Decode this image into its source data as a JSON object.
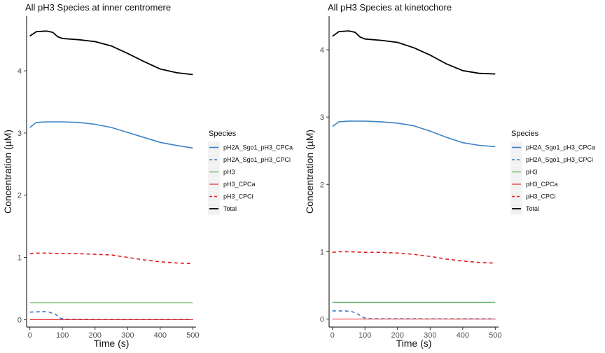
{
  "colors": {
    "pH2A_Sgo1_pH3_CPCa": "#3a82c4",
    "pH2A_Sgo1_pH3_CPCi": "#3a78c9",
    "pH3": "#33a02c",
    "pH3_CPCa": "#e31a1c",
    "pH3_CPCi": "#e31a1c",
    "Total": "#000000",
    "legend_bg": "#f2f2f2"
  },
  "chart_data": [
    {
      "type": "line",
      "title": "All pH3 Species at inner centromere",
      "xlabel": "Time (s)",
      "ylabel": "Concentration (µM)",
      "xlim": [
        -10,
        510
      ],
      "ylim": [
        -0.12,
        4.88
      ],
      "xticks": [
        "0",
        "100",
        "200",
        "300",
        "400",
        "500"
      ],
      "yticks": [
        "0",
        "1",
        "2",
        "3",
        "4"
      ],
      "grid": false,
      "legend": {
        "title": "Species",
        "placement": "right",
        "entries": [
          "pH2A_Sgo1_pH3_CPCa",
          "pH2A_Sgo1_pH3_CPCi",
          "pH3",
          "pH3_CPCa",
          "pH3_CPCi",
          "Total"
        ]
      },
      "series": [
        {
          "name": "pH2A_Sgo1_pH3_CPCa",
          "x": [
            0,
            20,
            50,
            100,
            150,
            200,
            250,
            300,
            350,
            400,
            450,
            500
          ],
          "y": [
            3.09,
            3.17,
            3.18,
            3.18,
            3.17,
            3.14,
            3.09,
            3.01,
            2.93,
            2.85,
            2.8,
            2.76
          ]
        },
        {
          "name": "pH2A_Sgo1_pH3_CPCi",
          "x": [
            0,
            40,
            60,
            80,
            95,
            110,
            150,
            500
          ],
          "y": [
            0.12,
            0.13,
            0.12,
            0.08,
            0.02,
            0.005,
            0.003,
            0.002
          ]
        },
        {
          "name": "pH3",
          "x": [
            0,
            500
          ],
          "y": [
            0.27,
            0.27
          ]
        },
        {
          "name": "pH3_CPCa",
          "x": [
            0,
            500
          ],
          "y": [
            0.0,
            0.0
          ]
        },
        {
          "name": "pH3_CPCi",
          "x": [
            0,
            20,
            50,
            100,
            150,
            200,
            250,
            300,
            350,
            400,
            450,
            500
          ],
          "y": [
            1.06,
            1.07,
            1.07,
            1.06,
            1.06,
            1.05,
            1.04,
            1.0,
            0.96,
            0.93,
            0.91,
            0.9
          ]
        },
        {
          "name": "Total",
          "x": [
            0,
            20,
            50,
            70,
            85,
            100,
            150,
            200,
            250,
            300,
            350,
            400,
            450,
            500
          ],
          "y": [
            4.56,
            4.63,
            4.64,
            4.62,
            4.55,
            4.52,
            4.5,
            4.47,
            4.4,
            4.28,
            4.15,
            4.03,
            3.97,
            3.94
          ]
        }
      ]
    },
    {
      "type": "line",
      "title": "All pH3 Species at kinetochore",
      "xlabel": "Time (s)",
      "ylabel": "Concentration (µM)",
      "xlim": [
        -10,
        510
      ],
      "ylim": [
        -0.12,
        4.5
      ],
      "xticks": [
        "0",
        "100",
        "200",
        "300",
        "400",
        "500"
      ],
      "yticks": [
        "0",
        "1",
        "2",
        "3",
        "4"
      ],
      "grid": false,
      "legend": {
        "title": "Species",
        "placement": "right",
        "entries": [
          "pH2A_Sgo1_pH3_CPCa",
          "pH2A_Sgo1_pH3_CPCi",
          "pH3",
          "pH3_CPCa",
          "pH3_CPCi",
          "Total"
        ]
      },
      "series": [
        {
          "name": "pH2A_Sgo1_pH3_CPCa",
          "x": [
            0,
            20,
            50,
            100,
            150,
            200,
            250,
            300,
            350,
            400,
            450,
            500
          ],
          "y": [
            2.86,
            2.93,
            2.94,
            2.94,
            2.93,
            2.91,
            2.87,
            2.79,
            2.7,
            2.62,
            2.58,
            2.56
          ]
        },
        {
          "name": "pH2A_Sgo1_pH3_CPCi",
          "x": [
            0,
            40,
            60,
            80,
            95,
            110,
            150,
            500
          ],
          "y": [
            0.12,
            0.12,
            0.11,
            0.07,
            0.02,
            0.005,
            0.003,
            0.002
          ]
        },
        {
          "name": "pH3",
          "x": [
            0,
            500
          ],
          "y": [
            0.25,
            0.25
          ]
        },
        {
          "name": "pH3_CPCa",
          "x": [
            0,
            500
          ],
          "y": [
            0.0,
            0.0
          ]
        },
        {
          "name": "pH3_CPCi",
          "x": [
            0,
            20,
            50,
            100,
            150,
            200,
            250,
            300,
            350,
            400,
            450,
            500
          ],
          "y": [
            0.99,
            1.0,
            1.0,
            0.99,
            0.99,
            0.98,
            0.96,
            0.93,
            0.89,
            0.86,
            0.84,
            0.83
          ]
        },
        {
          "name": "Total",
          "x": [
            0,
            20,
            50,
            70,
            85,
            100,
            150,
            200,
            250,
            300,
            350,
            400,
            450,
            500
          ],
          "y": [
            4.2,
            4.27,
            4.28,
            4.26,
            4.19,
            4.16,
            4.14,
            4.11,
            4.03,
            3.92,
            3.79,
            3.69,
            3.65,
            3.64
          ]
        }
      ]
    }
  ]
}
